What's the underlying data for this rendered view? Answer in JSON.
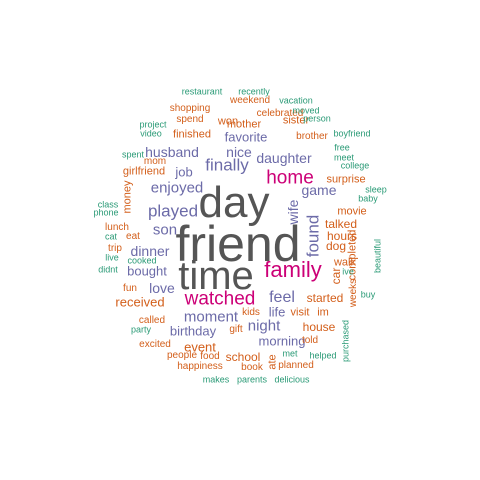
{
  "cloud": {
    "palette": {
      "xl": "#555555",
      "lg": "#cc0077",
      "md": "#6c6ba8",
      "sm": "#d35f1b",
      "xs": "#2a9a76"
    },
    "words": [
      {
        "text": "friend",
        "tier": "xl"
      },
      {
        "text": "day",
        "tier": "xl"
      },
      {
        "text": "time",
        "tier": "xl"
      },
      {
        "text": "family",
        "tier": "lg"
      },
      {
        "text": "watched",
        "tier": "lg"
      },
      {
        "text": "home",
        "tier": "lg"
      },
      {
        "text": "played",
        "tier": "md"
      },
      {
        "text": "finally",
        "tier": "md"
      },
      {
        "text": "enjoyed",
        "tier": "md"
      },
      {
        "text": "found",
        "tier": "md"
      },
      {
        "text": "wife",
        "tier": "md"
      },
      {
        "text": "son",
        "tier": "md"
      },
      {
        "text": "daughter",
        "tier": "md"
      },
      {
        "text": "husband",
        "tier": "md"
      },
      {
        "text": "nice",
        "tier": "md"
      },
      {
        "text": "job",
        "tier": "md"
      },
      {
        "text": "game",
        "tier": "md"
      },
      {
        "text": "dinner",
        "tier": "md"
      },
      {
        "text": "bought",
        "tier": "md"
      },
      {
        "text": "love",
        "tier": "md"
      },
      {
        "text": "moment",
        "tier": "md"
      },
      {
        "text": "feel",
        "tier": "md"
      },
      {
        "text": "night",
        "tier": "md"
      },
      {
        "text": "birthday",
        "tier": "md"
      },
      {
        "text": "life",
        "tier": "md"
      },
      {
        "text": "favorite",
        "tier": "md"
      },
      {
        "text": "morning",
        "tier": "md"
      },
      {
        "text": "received",
        "tier": "sm"
      },
      {
        "text": "started",
        "tier": "sm"
      },
      {
        "text": "event",
        "tier": "sm"
      },
      {
        "text": "school",
        "tier": "sm"
      },
      {
        "text": "house",
        "tier": "sm"
      },
      {
        "text": "hours",
        "tier": "sm"
      },
      {
        "text": "dog",
        "tier": "sm"
      },
      {
        "text": "talked",
        "tier": "sm"
      },
      {
        "text": "movie",
        "tier": "sm"
      },
      {
        "text": "surprise",
        "tier": "sm"
      },
      {
        "text": "car",
        "tier": "sm"
      },
      {
        "text": "walk",
        "tier": "sm"
      },
      {
        "text": "completed",
        "tier": "sm"
      },
      {
        "text": "visit",
        "tier": "sm"
      },
      {
        "text": "im",
        "tier": "sm"
      },
      {
        "text": "money",
        "tier": "sm"
      },
      {
        "text": "lunch",
        "tier": "sm"
      },
      {
        "text": "finished",
        "tier": "sm"
      },
      {
        "text": "mother",
        "tier": "sm"
      },
      {
        "text": "won",
        "tier": "sm"
      },
      {
        "text": "weekend",
        "tier": "sm"
      },
      {
        "text": "sister",
        "tier": "sm"
      },
      {
        "text": "brother",
        "tier": "sm"
      },
      {
        "text": "spend",
        "tier": "sm"
      },
      {
        "text": "celebrated",
        "tier": "sm"
      },
      {
        "text": "girlfriend",
        "tier": "sm"
      },
      {
        "text": "called",
        "tier": "sm"
      },
      {
        "text": "excited",
        "tier": "sm"
      },
      {
        "text": "happiness",
        "tier": "sm"
      },
      {
        "text": "shopping",
        "tier": "sm"
      },
      {
        "text": "ate",
        "tier": "sm"
      },
      {
        "text": "kids",
        "tier": "sm"
      },
      {
        "text": "gift",
        "tier": "sm"
      },
      {
        "text": "food",
        "tier": "sm"
      },
      {
        "text": "people",
        "tier": "sm"
      },
      {
        "text": "book",
        "tier": "sm"
      },
      {
        "text": "planned",
        "tier": "sm"
      },
      {
        "text": "told",
        "tier": "sm"
      },
      {
        "text": "mom",
        "tier": "sm"
      },
      {
        "text": "trip",
        "tier": "sm"
      },
      {
        "text": "eat",
        "tier": "sm"
      },
      {
        "text": "fun",
        "tier": "sm"
      },
      {
        "text": "weeks",
        "tier": "sm"
      },
      {
        "text": "restaurant",
        "tier": "xs"
      },
      {
        "text": "recently",
        "tier": "xs"
      },
      {
        "text": "vacation",
        "tier": "xs"
      },
      {
        "text": "moved",
        "tier": "xs"
      },
      {
        "text": "person",
        "tier": "xs"
      },
      {
        "text": "project",
        "tier": "xs"
      },
      {
        "text": "video",
        "tier": "xs"
      },
      {
        "text": "boyfriend",
        "tier": "xs"
      },
      {
        "text": "free",
        "tier": "xs"
      },
      {
        "text": "meet",
        "tier": "xs"
      },
      {
        "text": "college",
        "tier": "xs"
      },
      {
        "text": "spent",
        "tier": "xs"
      },
      {
        "text": "sleep",
        "tier": "xs"
      },
      {
        "text": "baby",
        "tier": "xs"
      },
      {
        "text": "class",
        "tier": "xs"
      },
      {
        "text": "phone",
        "tier": "xs"
      },
      {
        "text": "cat",
        "tier": "xs"
      },
      {
        "text": "cooked",
        "tier": "xs"
      },
      {
        "text": "live",
        "tier": "xs"
      },
      {
        "text": "didnt",
        "tier": "xs"
      },
      {
        "text": "party",
        "tier": "xs"
      },
      {
        "text": "ive",
        "tier": "xs"
      },
      {
        "text": "beautiful",
        "tier": "xs"
      },
      {
        "text": "buy",
        "tier": "xs"
      },
      {
        "text": "purchased",
        "tier": "xs"
      },
      {
        "text": "helped",
        "tier": "xs"
      },
      {
        "text": "met",
        "tier": "xs"
      },
      {
        "text": "makes",
        "tier": "xs"
      },
      {
        "text": "parents",
        "tier": "xs"
      },
      {
        "text": "delicious",
        "tier": "xs"
      }
    ]
  }
}
